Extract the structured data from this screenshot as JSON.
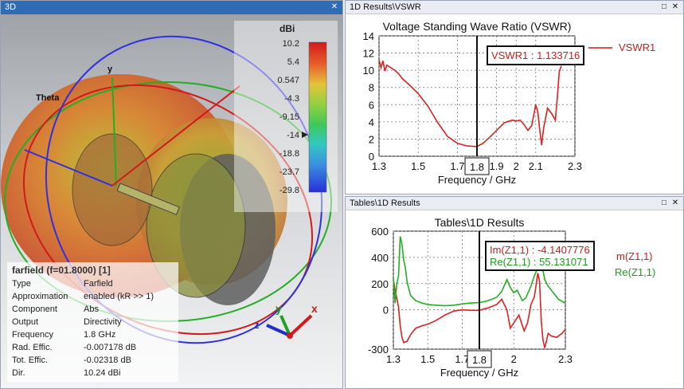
{
  "panes": {
    "view3d": {
      "title": "3D"
    },
    "vswr": {
      "title": "1D Results\\VSWR"
    },
    "tables": {
      "title": "Tables\\1D Results"
    }
  },
  "window_buttons": {
    "minimize": "□",
    "close": "✕"
  },
  "view3d": {
    "colorbar": {
      "unit": "dBi",
      "ticks": [
        "10.2",
        "5.4",
        "0.547",
        "-4.3",
        "-9.15",
        "-14",
        "-18.8",
        "-23.7",
        "-29.8"
      ]
    },
    "axes_labels": {
      "y_top": "y",
      "theta": "Theta"
    },
    "triad": {
      "x": "x",
      "y": "y",
      "z": "z"
    },
    "info": {
      "title": "farfield (f=01.8000) [1]",
      "rows": [
        {
          "key": "Type",
          "value": "Farfield"
        },
        {
          "key": "Approximation",
          "value": "enabled (kR >> 1)"
        },
        {
          "key": "Component",
          "value": "Abs"
        },
        {
          "key": "Output",
          "value": "Directivity"
        },
        {
          "key": "Frequency",
          "value": "1.8 GHz"
        },
        {
          "key": "Rad. Effic.",
          "value": "-0.007178 dB"
        },
        {
          "key": "Tot. Effic.",
          "value": "-0.02318 dB"
        },
        {
          "key": "Dir.",
          "value": "10.24 dBi"
        }
      ]
    }
  },
  "chart_data": [
    {
      "type": "line",
      "title": "Voltage Standing Wave Ratio (VSWR)",
      "xlabel": "Frequency / GHz",
      "ylabel": "",
      "xlim": [
        1.3,
        2.3
      ],
      "ylim": [
        0,
        14
      ],
      "xticks": [
        "1.3",
        "1.5",
        "1.7",
        "1.9",
        "2",
        "2.1",
        "2.3"
      ],
      "yticks": [
        "0",
        "2",
        "4",
        "6",
        "8",
        "10",
        "12",
        "14"
      ],
      "marker_x": 1.8,
      "marker_label": "1.8",
      "grid": true,
      "series": [
        {
          "name": "VSWR1",
          "color": "#e31f1f",
          "x": [
            1.3,
            1.31,
            1.32,
            1.33,
            1.34,
            1.36,
            1.38,
            1.4,
            1.42,
            1.45,
            1.5,
            1.55,
            1.6,
            1.65,
            1.7,
            1.75,
            1.78,
            1.8,
            1.83,
            1.86,
            1.9,
            1.94,
            1.98,
            2.0,
            2.02,
            2.04,
            2.06,
            2.08,
            2.1,
            2.11,
            2.12,
            2.13,
            2.14,
            2.16,
            2.18,
            2.2,
            2.21,
            2.22,
            2.23
          ],
          "values": [
            11.2,
            10.3,
            11.1,
            9.9,
            10.6,
            10.3,
            10.0,
            9.6,
            9.0,
            8.4,
            7.3,
            5.8,
            3.9,
            2.3,
            1.5,
            1.2,
            1.15,
            1.13,
            1.5,
            2.1,
            3.0,
            3.9,
            4.2,
            4.1,
            4.2,
            3.7,
            3.0,
            3.6,
            6.0,
            5.2,
            3.2,
            1.3,
            3.2,
            5.6,
            5.0,
            4.2,
            6.8,
            9.8,
            10.5
          ]
        }
      ],
      "legend_label": "VSWR1",
      "readout": "VSWR1 : 1.133716"
    },
    {
      "type": "line",
      "title": "Tables\\1D Results",
      "xlabel": "Frequency / GHz",
      "ylabel": "",
      "xlim": [
        1.3,
        2.3
      ],
      "ylim": [
        -300,
        600
      ],
      "xticks": [
        "1.3",
        "1.5",
        "1.7",
        "2",
        "2.3"
      ],
      "xtick_values": [
        1.3,
        1.5,
        1.7,
        2.0,
        2.3
      ],
      "yticks": [
        "-300",
        "0",
        "200",
        "400",
        "600"
      ],
      "ytick_values": [
        -300,
        0,
        200,
        400,
        600
      ],
      "marker_x": 1.8,
      "marker_label": "1.8",
      "grid": true,
      "series": [
        {
          "name": "Im(Z1,1)",
          "color": "#e31f1f",
          "x": [
            1.3,
            1.31,
            1.32,
            1.33,
            1.34,
            1.35,
            1.36,
            1.38,
            1.4,
            1.43,
            1.47,
            1.5,
            1.55,
            1.6,
            1.65,
            1.7,
            1.75,
            1.8,
            1.85,
            1.9,
            1.93,
            1.96,
            1.98,
            2.0,
            2.03,
            2.06,
            2.08,
            2.1,
            2.12,
            2.14,
            2.15,
            2.16,
            2.17,
            2.18,
            2.19,
            2.2,
            2.22,
            2.25,
            2.28,
            2.3
          ],
          "values": [
            230,
            150,
            90,
            20,
            -120,
            -210,
            -250,
            -240,
            -190,
            -140,
            -120,
            -110,
            -80,
            -40,
            -10,
            0,
            -4,
            -4,
            15,
            40,
            80,
            0,
            -140,
            -100,
            -40,
            -160,
            -100,
            40,
            100,
            280,
            220,
            -90,
            -230,
            -290,
            -240,
            -180,
            -200,
            -210,
            -180,
            -150
          ]
        },
        {
          "name": "Re(Z1,1)",
          "color": "#21b021",
          "x": [
            1.3,
            1.31,
            1.32,
            1.33,
            1.34,
            1.35,
            1.36,
            1.37,
            1.38,
            1.4,
            1.43,
            1.47,
            1.5,
            1.55,
            1.6,
            1.65,
            1.7,
            1.75,
            1.8,
            1.85,
            1.9,
            1.93,
            1.96,
            1.98,
            2.0,
            2.02,
            2.05,
            2.07,
            2.1,
            2.12,
            2.14,
            2.15,
            2.16,
            2.17,
            2.18,
            2.2,
            2.23,
            2.26,
            2.3
          ],
          "values": [
            240,
            50,
            200,
            260,
            560,
            500,
            380,
            320,
            210,
            110,
            70,
            50,
            40,
            35,
            32,
            35,
            45,
            52,
            55,
            70,
            95,
            140,
            230,
            170,
            130,
            150,
            70,
            90,
            180,
            260,
            320,
            450,
            380,
            300,
            230,
            180,
            130,
            80,
            50
          ]
        }
      ],
      "legend_labels": [
        "m(Z1,1)",
        "Re(Z1,1)"
      ],
      "readouts": [
        "Im(Z1,1) : -4.1407776",
        "Re(Z1,1) : 55.131071"
      ]
    }
  ]
}
